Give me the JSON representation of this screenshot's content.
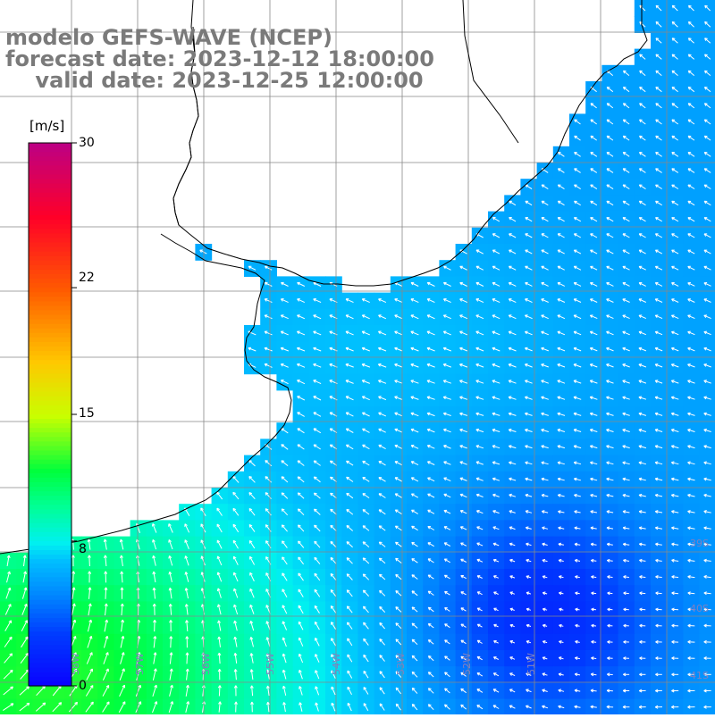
{
  "titles": {
    "line1": "modelo GEFS-WAVE (NCEP)",
    "line2": "forecast date: 2023-12-12 18:00:00",
    "line3": "    valid date: 2023-12-25 12:00:00"
  },
  "colorbar": {
    "units": "[m/s]",
    "min": 0,
    "max": 30,
    "tick_labels": [
      "30",
      "22",
      "15",
      "8",
      "0"
    ],
    "tick_values": [
      30,
      22,
      15,
      8,
      0
    ],
    "colors": [
      "#1a00ff",
      "#00b4ff",
      "#00ffe6",
      "#00ff40",
      "#3cff00",
      "#c8ff00",
      "#ffff00",
      "#ffb400",
      "#ff5000",
      "#ff0000",
      "#ff0060",
      "#c00080"
    ]
  },
  "map": {
    "lat_labels": [
      "39S",
      "40S",
      "41S"
    ],
    "lon_labels": [
      "58W",
      "57W",
      "56W",
      "55W",
      "54W",
      "53W",
      "52W",
      "51W"
    ],
    "land_color": "#ffffff",
    "grid_color": "#888888",
    "arrow_color": "#ffffff"
  }
}
